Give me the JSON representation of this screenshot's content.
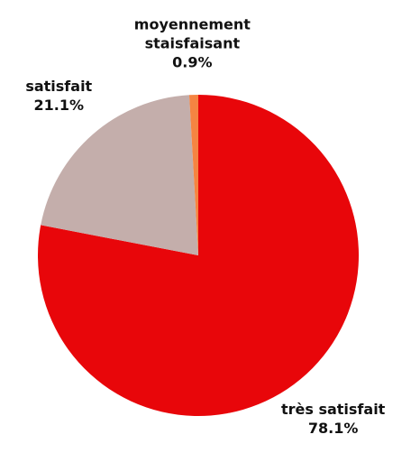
{
  "chart_data": {
    "type": "pie",
    "categories": [
      "très satisfait",
      "satisfait",
      "moyennement staisfaisant"
    ],
    "values": [
      78.1,
      21.1,
      0.9
    ],
    "value_labels": [
      "78.1%",
      "21.1%",
      "0.9%"
    ],
    "colors": [
      "#e8060a",
      "#c4aeab",
      "#f58442"
    ]
  }
}
